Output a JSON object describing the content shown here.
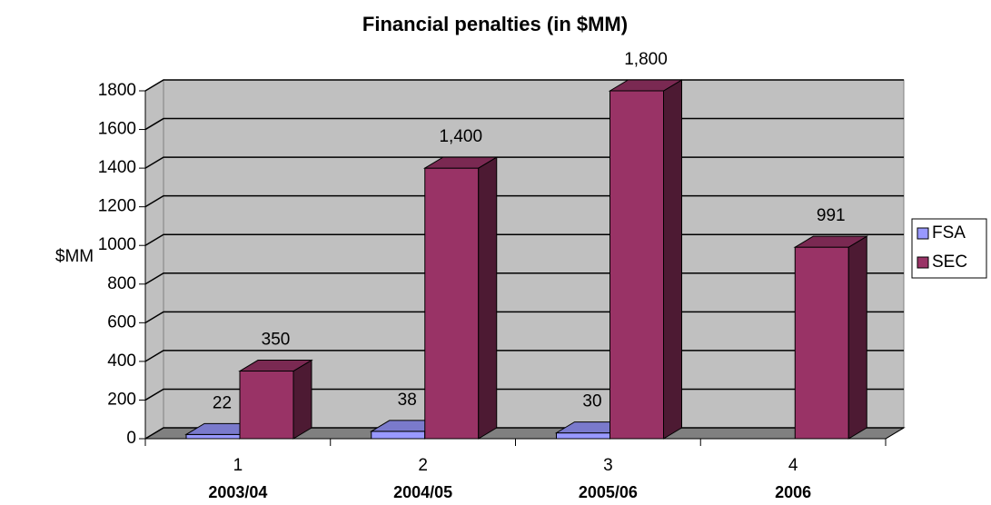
{
  "chart_data": {
    "type": "bar3d",
    "title": "Financial penalties (in $MM)",
    "y_label": "$MM",
    "categories": [
      "1",
      "2",
      "3",
      "4"
    ],
    "periods": [
      "2003/04",
      "2004/05",
      "2005/06",
      "2006"
    ],
    "series": [
      {
        "name": "FSA",
        "color": "#9999ff",
        "values": [
          22,
          38,
          30,
          null
        ]
      },
      {
        "name": "SEC",
        "color": "#993366",
        "values": [
          350,
          1400,
          1800,
          991
        ],
        "value_labels": [
          "350",
          "1,400",
          "1,800",
          "991"
        ]
      }
    ],
    "ylim": [
      0,
      1800
    ],
    "yticks": [
      0,
      200,
      400,
      600,
      800,
      1000,
      1200,
      1400,
      1600,
      1800
    ],
    "grid": true,
    "legend": "right"
  }
}
